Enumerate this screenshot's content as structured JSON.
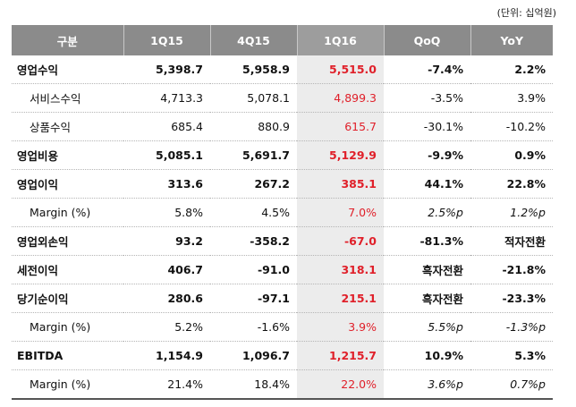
{
  "unit_label": "(단위: 십억원)",
  "headers": [
    "구분",
    "1Q15",
    "4Q15",
    "1Q16",
    "QoQ",
    "YoY"
  ],
  "rows": [
    {
      "label": "영업수익",
      "type": "bold",
      "values": [
        "5,398.7",
        "5,958.9",
        "5,515.0",
        "-7.4%",
        "2.2%"
      ]
    },
    {
      "label": "서비스수익",
      "type": "sub",
      "values": [
        "4,713.3",
        "5,078.1",
        "4,899.3",
        "-3.5%",
        "3.9%"
      ]
    },
    {
      "label": "상품수익",
      "type": "sub",
      "values": [
        "685.4",
        "880.9",
        "615.7",
        "-30.1%",
        "-10.2%"
      ]
    },
    {
      "label": "영업비용",
      "type": "bold",
      "values": [
        "5,085.1",
        "5,691.7",
        "5,129.9",
        "-9.9%",
        "0.9%"
      ]
    },
    {
      "label": "영업이익",
      "type": "bold",
      "values": [
        "313.6",
        "267.2",
        "385.1",
        "44.1%",
        "22.8%"
      ]
    },
    {
      "label": "Margin (%)",
      "type": "margin",
      "values": [
        "5.8%",
        "4.5%",
        "7.0%",
        "2.5%p",
        "1.2%p"
      ]
    },
    {
      "label": "영업외손익",
      "type": "bold",
      "values": [
        "93.2",
        "-358.2",
        "-67.0",
        "-81.3%",
        "적자전환"
      ]
    },
    {
      "label": "세전이익",
      "type": "bold",
      "values": [
        "406.7",
        "-91.0",
        "318.1",
        "흑자전환",
        "-21.8%"
      ]
    },
    {
      "label": "당기순이익",
      "type": "bold",
      "values": [
        "280.6",
        "-97.1",
        "215.1",
        "흑자전환",
        "-23.3%"
      ]
    },
    {
      "label": "Margin (%)",
      "type": "margin",
      "values": [
        "5.2%",
        "-1.6%",
        "3.9%",
        "5.5%p",
        "-1.3%p"
      ]
    },
    {
      "label": "EBITDA",
      "type": "bold",
      "values": [
        "1,154.9",
        "1,096.7",
        "1,215.7",
        "10.9%",
        "5.3%"
      ]
    },
    {
      "label": "Margin (%)",
      "type": "margin",
      "values": [
        "21.4%",
        "18.4%",
        "22.0%",
        "3.6%p",
        "0.7%p"
      ]
    }
  ],
  "colors": {
    "header_bg": "#8b8b8b",
    "highlight_bg": "#ececec",
    "highlight_text": "#e0202a"
  }
}
